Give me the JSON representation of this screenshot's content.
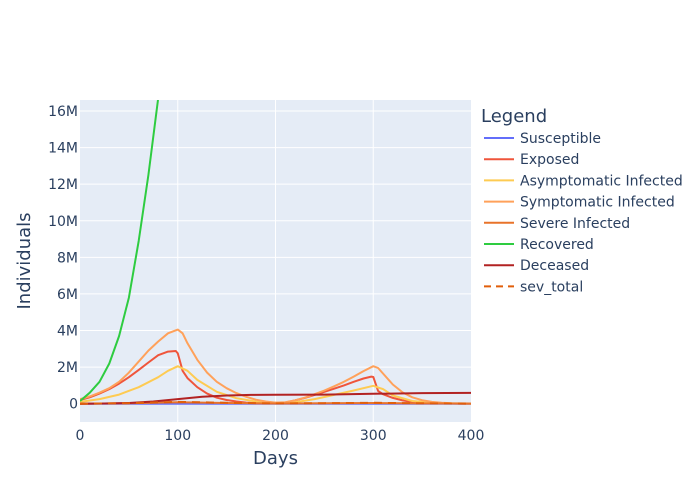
{
  "chart_data": {
    "type": "line",
    "xlabel": "Days",
    "ylabel": "Individuals",
    "xlim": [
      0,
      400
    ],
    "ylim": [
      -1000000,
      16600000
    ],
    "x_ticks": [
      0,
      100,
      200,
      300,
      400
    ],
    "y_ticks": [
      0,
      2000000,
      4000000,
      6000000,
      8000000,
      10000000,
      12000000,
      14000000,
      16000000
    ],
    "x_tick_labels": [
      "0",
      "100",
      "200",
      "300",
      "400"
    ],
    "y_tick_labels": [
      "0",
      "2M",
      "4M",
      "6M",
      "8M",
      "10M",
      "12M",
      "14M",
      "16M"
    ],
    "grid": true,
    "legend": {
      "title": "Legend",
      "position": "right"
    },
    "series": [
      {
        "name": "Susceptible",
        "color": "#636efa",
        "dash": "solid",
        "x": [
          0,
          50,
          100,
          150,
          200,
          250,
          300,
          350,
          400
        ],
        "y": [
          0,
          0,
          0,
          0,
          0,
          0,
          0,
          0,
          0
        ]
      },
      {
        "name": "Exposed",
        "color": "#ef553b",
        "dash": "solid",
        "x": [
          0,
          10,
          20,
          30,
          40,
          50,
          60,
          70,
          80,
          90,
          98,
          100,
          105,
          110,
          120,
          130,
          140,
          150,
          160,
          170,
          180,
          190,
          200,
          210,
          220,
          230,
          240,
          250,
          260,
          270,
          280,
          290,
          298,
          300,
          305,
          310,
          320,
          330,
          340,
          350,
          360,
          370,
          380,
          390,
          400
        ],
        "y": [
          200000,
          350000,
          550000,
          800000,
          1100000,
          1450000,
          1850000,
          2250000,
          2650000,
          2850000,
          2880000,
          2750000,
          1800000,
          1400000,
          900000,
          550000,
          330000,
          200000,
          120000,
          60000,
          30000,
          20000,
          20000,
          60000,
          180000,
          320000,
          480000,
          650000,
          820000,
          1000000,
          1200000,
          1380000,
          1480000,
          1460000,
          700000,
          520000,
          320000,
          180000,
          100000,
          50000,
          30000,
          15000,
          10000,
          5000,
          5000
        ]
      },
      {
        "name": "Asymptomatic Infected",
        "color": "#fecb52",
        "dash": "solid",
        "x": [
          0,
          20,
          40,
          60,
          80,
          90,
          100,
          110,
          120,
          140,
          160,
          180,
          200,
          220,
          240,
          260,
          280,
          300,
          310,
          320,
          340,
          360,
          380,
          400
        ],
        "y": [
          100000,
          250000,
          500000,
          900000,
          1450000,
          1800000,
          2050000,
          1800000,
          1300000,
          650000,
          300000,
          120000,
          50000,
          80000,
          250000,
          480000,
          720000,
          980000,
          800000,
          450000,
          150000,
          50000,
          15000,
          5000
        ]
      },
      {
        "name": "Symptomatic Infected",
        "color": "#ffa15a",
        "dash": "solid",
        "x": [
          0,
          10,
          20,
          30,
          40,
          50,
          60,
          70,
          80,
          90,
          100,
          105,
          110,
          120,
          130,
          140,
          150,
          160,
          170,
          180,
          190,
          200,
          210,
          220,
          230,
          240,
          250,
          260,
          270,
          280,
          290,
          300,
          305,
          310,
          320,
          330,
          340,
          350,
          360,
          370,
          380,
          390,
          400
        ],
        "y": [
          250000,
          400000,
          600000,
          850000,
          1200000,
          1700000,
          2300000,
          2900000,
          3400000,
          3850000,
          4050000,
          3850000,
          3300000,
          2400000,
          1700000,
          1200000,
          850000,
          580000,
          380000,
          220000,
          120000,
          60000,
          80000,
          180000,
          330000,
          520000,
          720000,
          950000,
          1200000,
          1480000,
          1780000,
          2050000,
          1950000,
          1650000,
          1050000,
          620000,
          350000,
          190000,
          100000,
          55000,
          30000,
          15000,
          10000
        ]
      },
      {
        "name": "Severe Infected",
        "color": "#e8732a",
        "dash": "solid",
        "x": [
          0,
          50,
          100,
          150,
          200,
          250,
          300,
          350,
          400
        ],
        "y": [
          0,
          20000,
          80000,
          40000,
          10000,
          20000,
          40000,
          15000,
          5000
        ]
      },
      {
        "name": "Recovered",
        "color": "#2ecc40",
        "dash": "solid",
        "x": [
          0,
          10,
          20,
          30,
          40,
          50,
          60,
          70,
          80,
          87
        ],
        "y": [
          150000,
          600000,
          1200000,
          2200000,
          3700000,
          5800000,
          8900000,
          12500000,
          16700000,
          17000000
        ]
      },
      {
        "name": "Deceased",
        "color": "#b22222",
        "dash": "solid",
        "x": [
          0,
          25,
          50,
          75,
          100,
          125,
          150,
          175,
          200,
          250,
          300,
          350,
          400
        ],
        "y": [
          0,
          10000,
          40000,
          120000,
          250000,
          380000,
          450000,
          480000,
          490000,
          500000,
          540000,
          580000,
          590000
        ]
      },
      {
        "name": "sev_total",
        "color": "#e15f0a",
        "dash": "dash",
        "x": [
          0,
          50,
          100,
          150,
          200,
          250,
          300,
          350,
          400
        ],
        "y": [
          0,
          30000,
          100000,
          50000,
          15000,
          30000,
          50000,
          20000,
          8000
        ]
      }
    ]
  }
}
